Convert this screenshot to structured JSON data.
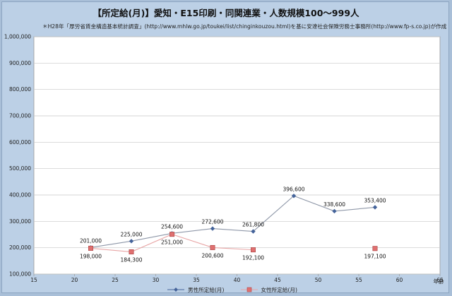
{
  "chart_data": {
    "type": "line",
    "title": "【所定給(月)】愛知・E15印刷・同関連業・人数規模100～999人",
    "source_note": "＊H28年「厚労省賃金構造基本統計調査」(http://www.mhlw.go.jp/toukei/list/chinginkouzou.html)を基に安達社会保険労務士事務所(http://www.fp-s.co.jp)が作成",
    "xlabel": "年齢",
    "ylabel": "",
    "xlim": [
      15,
      65
    ],
    "ylim": [
      100000,
      1000000
    ],
    "x_ticks": [
      "15",
      "20",
      "25",
      "30",
      "35",
      "40",
      "45",
      "50",
      "55",
      "60",
      "65"
    ],
    "y_ticks": [
      "100,000",
      "200,000",
      "300,000",
      "400,000",
      "500,000",
      "600,000",
      "700,000",
      "800,000",
      "900,000",
      "1,000,000"
    ],
    "grid": true,
    "legend_position": "bottom",
    "series": [
      {
        "name": "男性所定給(月)",
        "color": "#44639a",
        "marker": "diamond",
        "x": [
          22,
          27,
          32,
          37,
          42,
          47,
          52,
          57
        ],
        "y": [
          201000,
          225000,
          254600,
          272600,
          261800,
          396600,
          338600,
          353400
        ],
        "labels": [
          "201,000",
          "225,000",
          "254,600",
          "272,600",
          "261,800",
          "396,600",
          "338,600",
          "353,400"
        ]
      },
      {
        "name": "女性所定給(月)",
        "color": "#e07070",
        "marker": "square",
        "x": [
          22,
          27,
          32,
          37,
          42,
          57
        ],
        "y": [
          198000,
          184300,
          251000,
          200600,
          192100,
          197100
        ],
        "labels": [
          "198,000",
          "184,300",
          "251,000",
          "200,600",
          "192,100",
          "197,100"
        ],
        "segments": [
          [
            0,
            4
          ],
          [
            5,
            5
          ]
        ]
      }
    ]
  }
}
